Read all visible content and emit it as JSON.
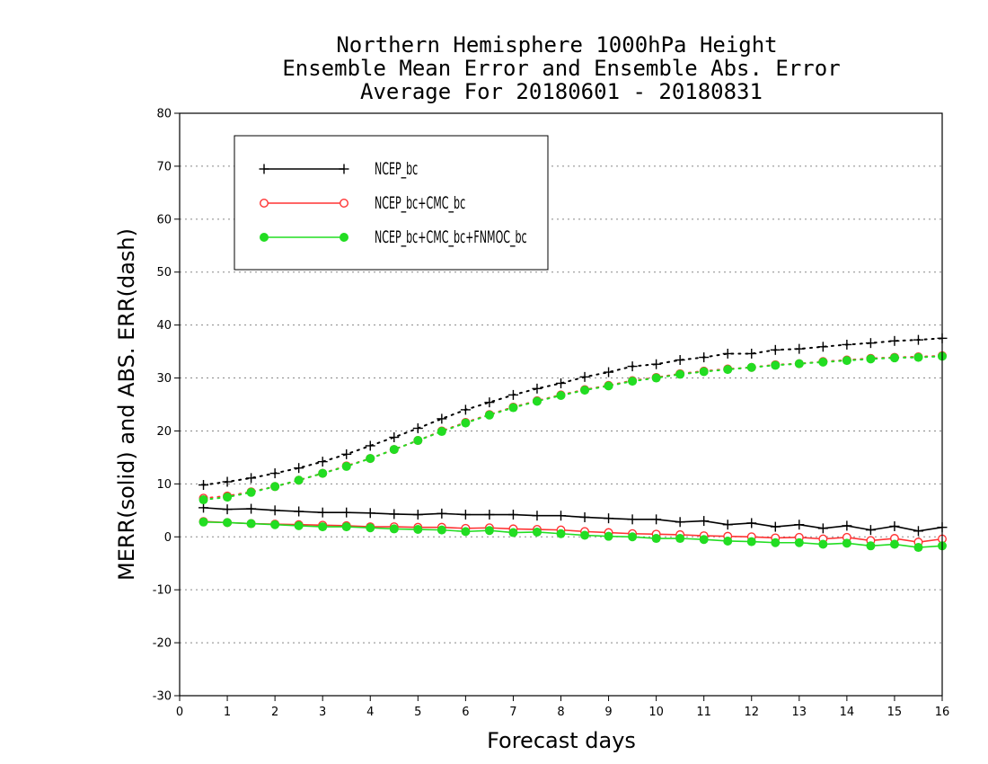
{
  "chart_data": {
    "type": "line",
    "title_lines": [
      "Northern Hemisphere 1000hPa Height",
      "Ensemble Mean Error and Ensemble Abs. Error",
      "Average For 20180601 - 20180831"
    ],
    "xlabel": "Forecast days",
    "ylabel": "MERR(solid) and ABS. ERR(dash)",
    "xlim": [
      0,
      16
    ],
    "ylim": [
      -30,
      80
    ],
    "xticks": [
      "0",
      "1",
      "2",
      "3",
      "4",
      "5",
      "6",
      "7",
      "8",
      "9",
      "10",
      "11",
      "12",
      "13",
      "14",
      "15",
      "16"
    ],
    "yticks": [
      "-30",
      "-20",
      "-10",
      "0",
      "10",
      "20",
      "30",
      "40",
      "50",
      "60",
      "70",
      "80"
    ],
    "grid": "horizontal dotted",
    "legend_position": "top-left",
    "x": [
      0.5,
      1,
      1.5,
      2,
      2.5,
      3,
      3.5,
      4,
      4.5,
      5,
      5.5,
      6,
      6.5,
      7,
      7.5,
      8,
      8.5,
      9,
      9.5,
      10,
      10.5,
      11,
      11.5,
      12,
      12.5,
      13,
      13.5,
      14,
      14.5,
      15,
      15.5,
      16
    ],
    "series": [
      {
        "name": "NCEP_bc",
        "color": "#000000",
        "marker": "plus",
        "merr": [
          5.5,
          5.2,
          5.3,
          5.0,
          4.8,
          4.6,
          4.6,
          4.5,
          4.3,
          4.2,
          4.4,
          4.2,
          4.2,
          4.2,
          4.0,
          4.0,
          3.7,
          3.5,
          3.3,
          3.3,
          2.8,
          3.0,
          2.3,
          2.6,
          1.9,
          2.3,
          1.6,
          2.1,
          1.3,
          2.0,
          1.1,
          1.8
        ],
        "abs_err": [
          9.8,
          10.4,
          11.1,
          12.0,
          13.0,
          14.2,
          15.6,
          17.2,
          18.8,
          20.5,
          22.3,
          24.0,
          25.4,
          26.8,
          28.0,
          29.0,
          30.2,
          31.1,
          32.2,
          32.6,
          33.4,
          33.9,
          34.6,
          34.6,
          35.3,
          35.5,
          35.9,
          36.3,
          36.6,
          37.0,
          37.2,
          37.5
        ]
      },
      {
        "name": "NCEP_bc+CMC_bc",
        "color": "#ff3333",
        "marker": "open-circle",
        "merr": [
          2.9,
          2.7,
          2.5,
          2.4,
          2.3,
          2.2,
          2.1,
          1.9,
          1.9,
          1.8,
          1.8,
          1.6,
          1.7,
          1.5,
          1.4,
          1.3,
          1.0,
          0.8,
          0.6,
          0.5,
          0.4,
          0.2,
          0.1,
          0.0,
          -0.2,
          -0.1,
          -0.4,
          -0.1,
          -0.7,
          -0.3,
          -1.0,
          -0.4
        ],
        "abs_err": [
          7.3,
          7.7,
          8.5,
          9.5,
          10.7,
          12.0,
          13.4,
          14.8,
          16.5,
          18.2,
          20.0,
          21.6,
          23.1,
          24.5,
          25.7,
          26.8,
          27.8,
          28.6,
          29.5,
          30.1,
          30.8,
          31.3,
          31.7,
          32.0,
          32.5,
          32.7,
          33.1,
          33.4,
          33.7,
          33.9,
          34.0,
          34.2
        ]
      },
      {
        "name": "NCEP_bc+CMC_bc+FNMOC_bc",
        "color": "#22dd22",
        "marker": "filled-circle",
        "merr": [
          2.8,
          2.7,
          2.5,
          2.3,
          2.1,
          1.9,
          1.9,
          1.7,
          1.5,
          1.4,
          1.3,
          1.0,
          1.2,
          0.8,
          0.9,
          0.6,
          0.3,
          0.1,
          0.0,
          -0.3,
          -0.3,
          -0.5,
          -0.8,
          -0.9,
          -1.1,
          -1.1,
          -1.4,
          -1.2,
          -1.7,
          -1.4,
          -2.0,
          -1.7
        ],
        "abs_err": [
          7.0,
          7.5,
          8.4,
          9.5,
          10.7,
          12.0,
          13.3,
          14.8,
          16.5,
          18.2,
          19.9,
          21.5,
          23.0,
          24.4,
          25.6,
          26.7,
          27.7,
          28.5,
          29.4,
          30.0,
          30.7,
          31.2,
          31.6,
          32.0,
          32.4,
          32.7,
          33.0,
          33.3,
          33.6,
          33.8,
          33.9,
          34.1
        ]
      }
    ]
  }
}
